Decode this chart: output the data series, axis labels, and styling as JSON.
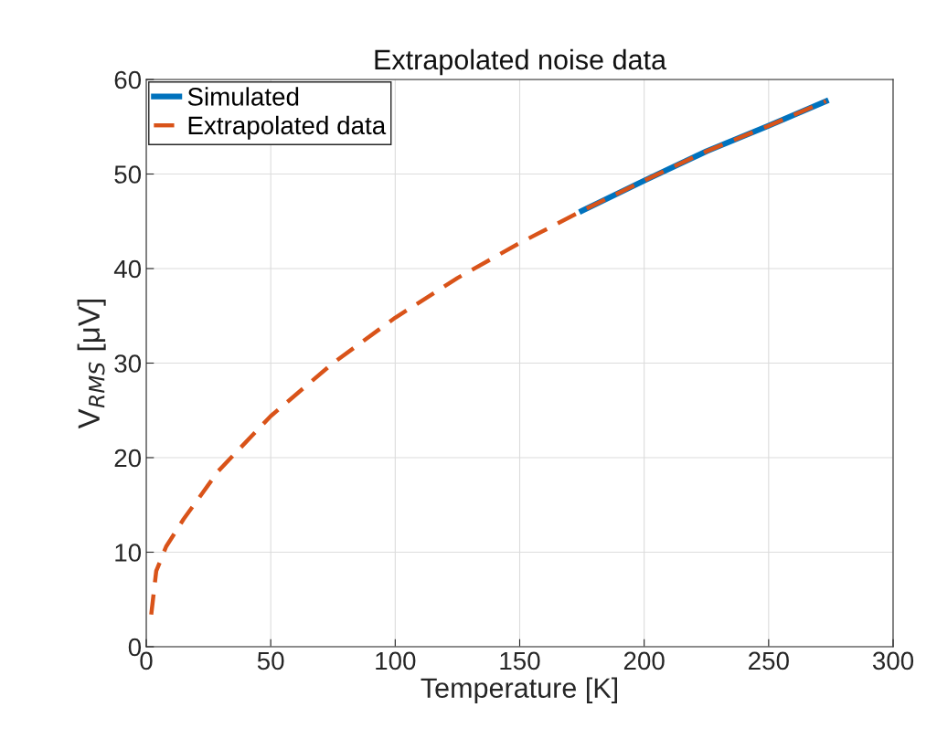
{
  "chart_data": {
    "type": "line",
    "title": "Extrapolated noise data",
    "xlabel": "Temperature [K]",
    "ylabel": "V$_{RMS}$ [μV]",
    "series": [
      {
        "name": "Simulated",
        "color": "#0072bd",
        "line_style": "solid",
        "x": [
          175,
          200,
          225,
          250,
          273
        ],
        "values": [
          46.1,
          49.3,
          52.4,
          55.1,
          57.7
        ]
      },
      {
        "name": "Extrapolated data",
        "color": "#d95319",
        "line_style": "dashed",
        "x": [
          2,
          4,
          8,
          15,
          29,
          50,
          75,
          100,
          125,
          150,
          175,
          200,
          225,
          250,
          273
        ],
        "values": [
          3.4,
          8.0,
          10.6,
          13.5,
          18.6,
          24.4,
          30.0,
          34.8,
          39.0,
          42.7,
          46.1,
          49.3,
          52.4,
          55.1,
          57.7
        ]
      }
    ],
    "xlim": [
      0,
      300
    ],
    "xticks": [
      0,
      50,
      100,
      150,
      200,
      250,
      300
    ],
    "ylim": [
      0,
      60
    ],
    "yticks": [
      0,
      10,
      20,
      30,
      40,
      50,
      60
    ],
    "grid": true,
    "legend": "top left",
    "marker": "none"
  }
}
